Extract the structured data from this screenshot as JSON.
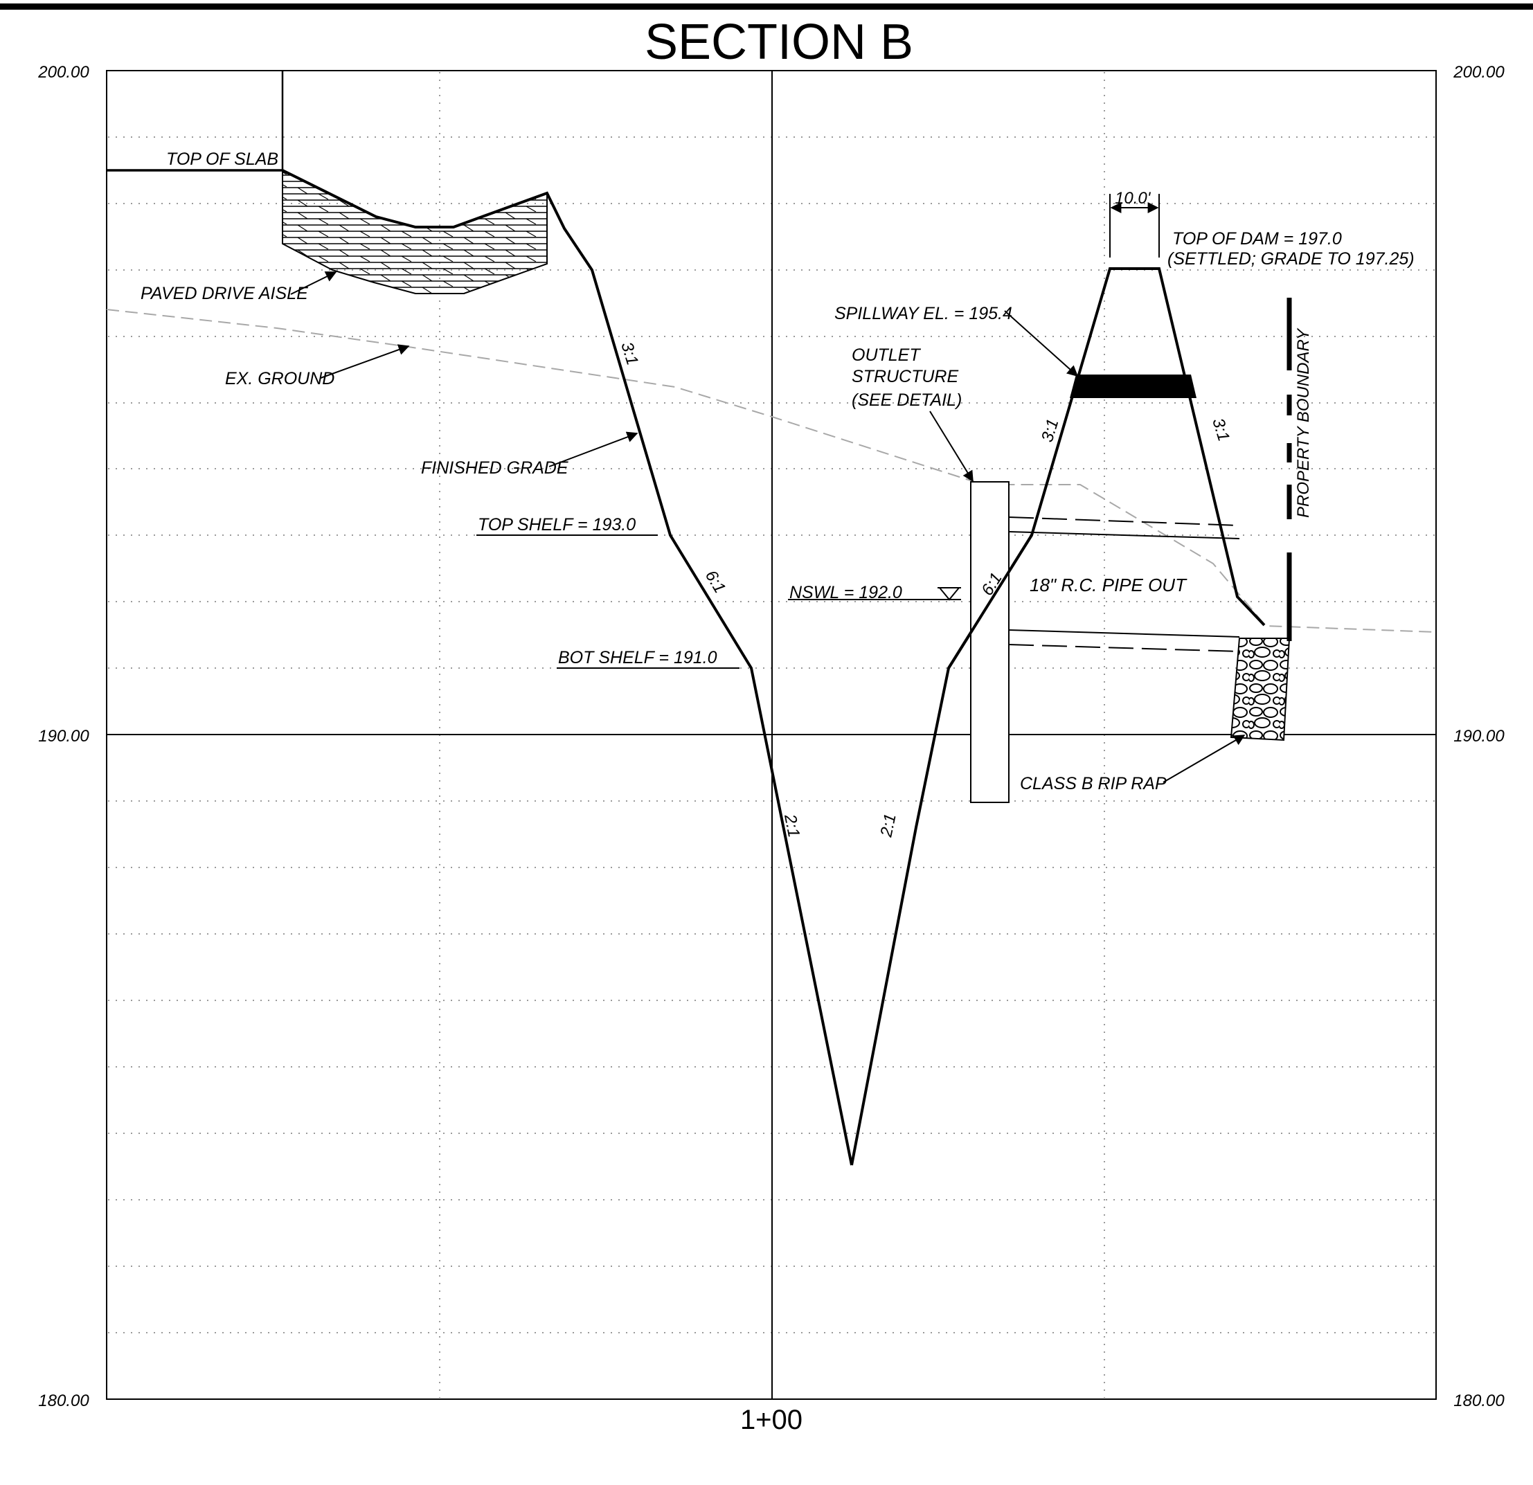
{
  "title": "SECTION B",
  "station_label": "1+00",
  "elevations": {
    "top_left": "200.00",
    "top_right": "200.00",
    "mid_left": "190.00",
    "mid_right": "190.00",
    "bottom_left": "180.00",
    "bottom_right": "180.00"
  },
  "labels": {
    "top_of_slab": "TOP OF SLAB",
    "paved_drive_aisle": "PAVED DRIVE AISLE",
    "ex_ground": "EX. GROUND",
    "finished_grade": "FINISHED GRADE",
    "top_shelf": "TOP SHELF = 193.0",
    "bot_shelf": "BOT SHELF = 191.0",
    "nswl": "NSWL = 192.0",
    "spillway": "SPILLWAY EL. = 195.4",
    "outlet_line1": "OUTLET",
    "outlet_line2": "STRUCTURE",
    "outlet_line3": "(SEE DETAIL)",
    "top_of_dam_line1": "TOP OF DAM = 197.0",
    "top_of_dam_line2": "(SETTLED; GRADE TO 197.25)",
    "dam_width": "10.0'",
    "pipe": "18\" R.C. PIPE OUT",
    "rip_rap": "CLASS B RIP RAP",
    "property_boundary": "PROPERTY BOUNDARY"
  },
  "slopes": {
    "upper_left": "3:1",
    "shelf_left": "6:1",
    "bottom_left": "2:1",
    "bottom_right": "2:1",
    "shelf_right": "6:1",
    "dam_inner": "3:1",
    "dam_outer": "3:1"
  },
  "colors": {
    "ink": "#000000",
    "grid": "#9a9a9a",
    "existing_ground": "#a8a8a8"
  }
}
